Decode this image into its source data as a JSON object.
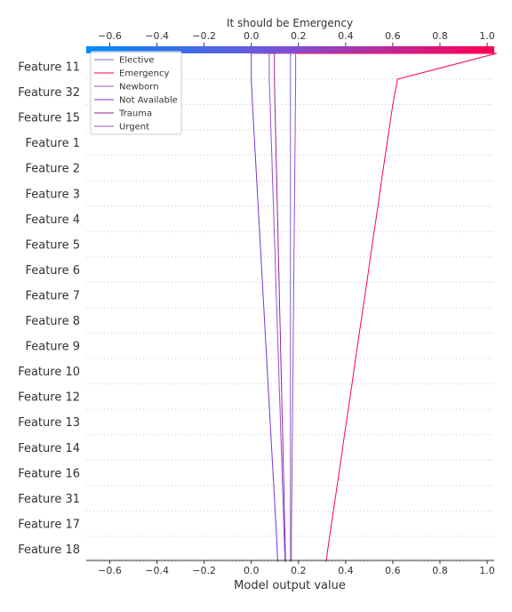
{
  "chart_data": {
    "type": "line",
    "title": "It should be Emergency",
    "xlabel": "Model output value",
    "xlim": [
      -0.7,
      1.03
    ],
    "xticks": [
      -0.6,
      -0.4,
      -0.2,
      0.0,
      0.2,
      0.4,
      0.6,
      0.8,
      1.0
    ],
    "xtick_labels": [
      "−0.6",
      "−0.4",
      "−0.2",
      "0.0",
      "0.2",
      "0.4",
      "0.6",
      "0.8",
      "1.0"
    ],
    "base_value": 0.0,
    "features": [
      "Feature 11",
      "Feature 32",
      "Feature 15",
      "Feature 1",
      "Feature 2",
      "Feature 3",
      "Feature 4",
      "Feature 5",
      "Feature 6",
      "Feature 7",
      "Feature 8",
      "Feature 9",
      "Feature 10",
      "Feature 12",
      "Feature 13",
      "Feature 14",
      "Feature 16",
      "Feature 31",
      "Feature 17",
      "Feature 18"
    ],
    "grid": "horizontal-dotted",
    "legend_position": "top-left",
    "colorbar": {
      "from": "#008bfb",
      "to": "#ff0052"
    },
    "series": [
      {
        "name": "Elective",
        "color": "#7d63d2",
        "top": 0.166,
        "values": [
          0.166,
          0.166,
          0.166,
          0.166,
          0.166,
          0.166,
          0.166,
          0.166,
          0.166,
          0.166,
          0.166,
          0.166,
          0.166,
          0.166,
          0.166,
          0.166,
          0.166,
          0.166,
          0.166,
          0.166
        ]
      },
      {
        "name": "Emergency",
        "color": "#ff0052",
        "top": 1.04,
        "values": [
          0.62,
          0.6,
          0.584,
          0.568,
          0.552,
          0.537,
          0.521,
          0.505,
          0.49,
          0.474,
          0.458,
          0.442,
          0.427,
          0.411,
          0.395,
          0.38,
          0.364,
          0.348,
          0.332,
          0.317
        ]
      },
      {
        "name": "Newborn",
        "color": "#9d4cc0",
        "top": 0.188,
        "values": [
          0.188,
          0.187,
          0.186,
          0.185,
          0.184,
          0.183,
          0.182,
          0.181,
          0.18,
          0.179,
          0.178,
          0.177,
          0.176,
          0.175,
          0.174,
          0.173,
          0.172,
          0.171,
          0.17,
          0.17
        ]
      },
      {
        "name": "Not Available",
        "color": "#7436d4",
        "top": 0.0,
        "values": [
          0.0,
          0.005,
          0.011,
          0.017,
          0.023,
          0.029,
          0.035,
          0.041,
          0.047,
          0.053,
          0.059,
          0.065,
          0.071,
          0.077,
          0.083,
          0.089,
          0.095,
          0.101,
          0.107,
          0.112
        ]
      },
      {
        "name": "Trauma",
        "color": "#a21d9c",
        "top": 0.098,
        "values": [
          0.098,
          0.1,
          0.103,
          0.105,
          0.108,
          0.11,
          0.113,
          0.115,
          0.118,
          0.12,
          0.123,
          0.125,
          0.128,
          0.13,
          0.133,
          0.135,
          0.138,
          0.14,
          0.143,
          0.145
        ]
      },
      {
        "name": "Urgent",
        "color": "#8e52d0",
        "top": 0.076,
        "values": [
          0.076,
          0.08,
          0.083,
          0.087,
          0.09,
          0.094,
          0.097,
          0.101,
          0.104,
          0.108,
          0.111,
          0.115,
          0.118,
          0.122,
          0.125,
          0.129,
          0.132,
          0.136,
          0.139,
          0.143
        ]
      }
    ]
  }
}
